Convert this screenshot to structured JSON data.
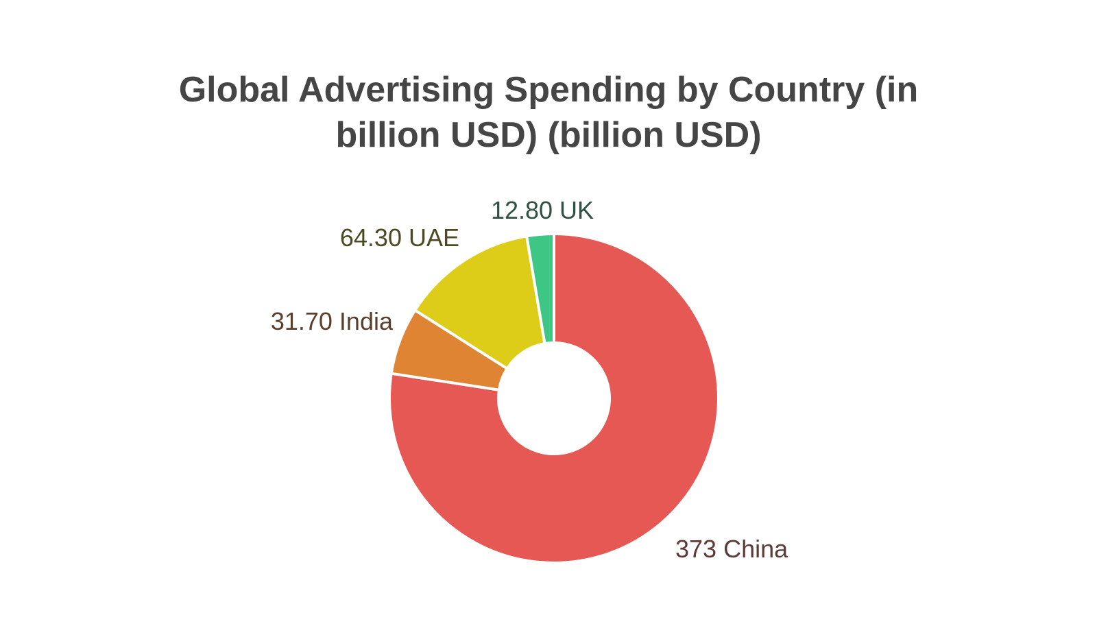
{
  "chart_data": {
    "type": "pie",
    "title_lines": [
      "Global Advertising Spending by Country (in",
      "billion USD) (billion USD)"
    ],
    "donut": true,
    "start": "top",
    "direction": "clockwise",
    "slices": [
      {
        "label": "China",
        "value": 373,
        "display_value": "373",
        "text": "373 China",
        "color": "#e55854",
        "label_color": "#5b3a38"
      },
      {
        "label": "India",
        "value": 31.7,
        "display_value": "31.70",
        "text": "31.70 India",
        "color": "#de8433",
        "label_color": "#5b3f2c"
      },
      {
        "label": "UAE",
        "value": 64.3,
        "display_value": "64.30",
        "text": "64.30 UAE",
        "color": "#decd18",
        "label_color": "#4d4a22"
      },
      {
        "label": "UK",
        "value": 12.8,
        "display_value": "12.80",
        "text": "12.80 UK",
        "color": "#3ec784",
        "label_color": "#2f5142"
      }
    ]
  }
}
